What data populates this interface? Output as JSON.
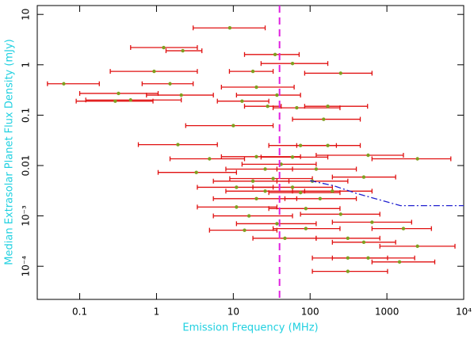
{
  "chart_data": {
    "type": "scatter",
    "xlabel": "Emission Frequency (MHz)",
    "ylabel": "Median Extrasolar Planet Flux Density (mJy)",
    "log_x": true,
    "log_y": true,
    "xlim": [
      0.028,
      10000
    ],
    "ylim": [
      2.2e-05,
      15
    ],
    "xticks": [
      0.1,
      1,
      10,
      100,
      1000,
      {
        "value": 10000,
        "label": "10⁴"
      }
    ],
    "yticks": [
      10,
      1,
      0.1,
      0.01,
      {
        "value": 0.001,
        "label": "10⁻³"
      },
      {
        "value": 0.0001,
        "label": "10⁻⁴"
      }
    ],
    "color": "#7f9f1f",
    "error_color": "#e01010",
    "x": [
      9,
      1.24,
      2.2,
      35,
      59,
      0.93,
      18,
      250,
      0.062,
      1.5,
      20,
      0.46,
      2.1,
      0.29,
      13,
      28,
      67,
      170,
      150,
      10,
      1.9,
      75,
      170,
      570,
      20,
      59,
      2500,
      3.3,
      26,
      120,
      500,
      33,
      11,
      59,
      195,
      26,
      75,
      20,
      135,
      11,
      88,
      250,
      16,
      640,
      37,
      14,
      88,
      1640,
      310,
      47,
      500,
      2500,
      310,
      570,
      1460,
      310,
      0.32,
      37,
      4.9,
      42,
      107,
      18
    ],
    "values": [
      5.4,
      2.2,
      1.9,
      1.6,
      1.06,
      0.74,
      0.74,
      0.68,
      0.42,
      0.42,
      0.36,
      0.2,
      0.25,
      0.19,
      0.19,
      0.15,
      0.14,
      0.15,
      0.083,
      0.062,
      0.026,
      0.025,
      0.025,
      0.016,
      0.015,
      0.0147,
      0.0136,
      0.0073,
      0.0085,
      0.0085,
      0.0059,
      0.0055,
      0.0037,
      0.0037,
      0.0031,
      0.0031,
      0.0029,
      0.0022,
      0.0022,
      0.0015,
      0.0014,
      0.00108,
      0.001,
      0.00075,
      0.0007,
      0.00052,
      0.00056,
      0.00056,
      0.00036,
      0.00036,
      0.0003,
      0.00025,
      0.000146,
      0.000146,
      0.000122,
      7.92e-05,
      0.27,
      0.25,
      0.0136,
      0.0106,
      0.0049,
      0.0049
    ],
    "x_low": [
      3,
      0.46,
      1.33,
      14,
      23,
      0.25,
      8.9,
      85,
      0.038,
      0.65,
      7,
      0.12,
      0.74,
      0.09,
      6.2,
      14,
      33,
      85,
      59,
      2.4,
      0.58,
      29,
      67,
      120,
      7,
      23,
      640,
      1.05,
      8,
      37,
      195,
      9,
      3.4,
      18,
      59,
      8,
      29,
      5.5,
      47,
      3.4,
      29,
      75,
      5.5,
      195,
      11,
      4.9,
      33,
      640,
      120,
      18,
      195,
      810,
      107,
      195,
      640,
      107,
      0.1,
      11,
      1.5,
      13,
      37,
      5.5
    ],
    "x_high": [
      26,
      3.4,
      3.9,
      72,
      170,
      3.4,
      33,
      640,
      0.18,
      3,
      62,
      2.1,
      5.5,
      0.9,
      29,
      42,
      245,
      560,
      450,
      33,
      6.2,
      220,
      450,
      1640,
      75,
      170,
      6800,
      11,
      59,
      400,
      1300,
      107,
      33,
      195,
      640,
      85,
      245,
      67,
      400,
      37,
      245,
      810,
      59,
      2100,
      120,
      37,
      245,
      3800,
      810,
      120,
      1300,
      7700,
      1020,
      2300,
      4200,
      1020,
      1.05,
      75,
      14,
      120,
      310,
      53
    ],
    "vline": {
      "x": 40,
      "color": "#e020e0"
    },
    "line": {
      "x": [
        100,
        200,
        400,
        1500,
        10000
      ],
      "values": [
        0.005,
        0.004,
        0.0028,
        0.0016,
        0.0016
      ],
      "color": "#2020d0"
    }
  }
}
